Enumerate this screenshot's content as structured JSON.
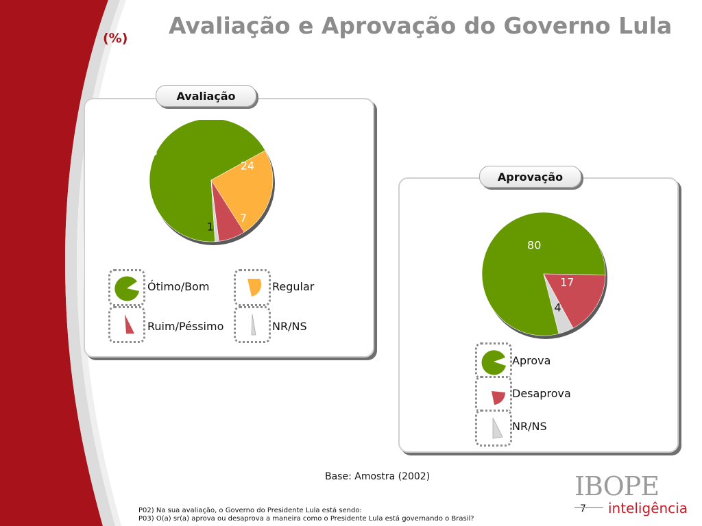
{
  "header": {
    "title": "Avaliação e Aprovação do Governo Lula",
    "unit": "(%)"
  },
  "colors": {
    "green": "#669900",
    "orange": "#ffb13d",
    "red": "#c94a52",
    "gray": "#d8d8d8",
    "brand_red": "#a5141b"
  },
  "chart_data": [
    {
      "type": "pie",
      "title": "Avaliação",
      "slices": [
        {
          "name": "Ótimo/Bom",
          "value": 68,
          "color": "#669900",
          "label_color": "#ffffff"
        },
        {
          "name": "Regular",
          "value": 24,
          "color": "#ffb13d",
          "label_color": "#ffffff"
        },
        {
          "name": "Ruim/Péssimo",
          "value": 7,
          "color": "#c94a52",
          "label_color": "#ffffff"
        },
        {
          "name": "NR/NS",
          "value": 1,
          "color": "#d8d8d8",
          "label_color": "#111111"
        }
      ]
    },
    {
      "type": "pie",
      "title": "Aprovação",
      "slices": [
        {
          "name": "Aprova",
          "value": 80,
          "color": "#669900",
          "label_color": "#ffffff"
        },
        {
          "name": "Desaprova",
          "value": 17,
          "color": "#c94a52",
          "label_color": "#ffffff"
        },
        {
          "name": "NR/NS",
          "value": 4,
          "color": "#d8d8d8",
          "label_color": "#111111"
        }
      ]
    }
  ],
  "base": "Base: Amostra (2002)",
  "footnotes": [
    "P02) Na sua avaliação, o Governo do Presidente Lula está sendo:",
    "P03) O(a) sr(a) aprova ou desaprova a maneira como o Presidente Lula está governando o Brasil?"
  ],
  "page_number": "7",
  "logo": {
    "top": "IBOPE",
    "bottom": "inteligência"
  }
}
